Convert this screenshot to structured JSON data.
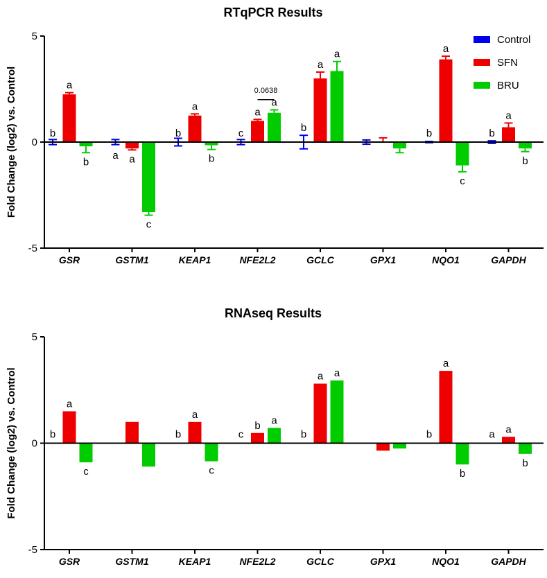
{
  "colors": {
    "Control": "#0000ee",
    "SFN": "#ee0000",
    "BRU": "#00cc00"
  },
  "legend": {
    "position": "top-right",
    "entries": [
      "Control",
      "SFN",
      "BRU"
    ]
  },
  "chart_data": [
    {
      "type": "bar",
      "title": "RTqPCR Results",
      "ylabel": "Fold Change (log2) vs. Control",
      "ylim": [
        -5,
        5
      ],
      "yticks": [
        "-5",
        "0",
        "5"
      ],
      "categories": [
        "GSR",
        "GSTM1",
        "KEAP1",
        "NFE2L2",
        "GCLC",
        "GPX1",
        "NQO1",
        "GAPDH"
      ],
      "series": [
        {
          "name": "Control",
          "values": [
            0,
            0,
            0,
            0,
            0,
            0,
            0,
            0
          ],
          "errors": [
            0.12,
            0.12,
            0.18,
            0.12,
            0.32,
            0.1,
            0.03,
            0.06
          ],
          "letters": [
            "b",
            "a",
            "b",
            "c",
            "b",
            "",
            "b",
            "b"
          ]
        },
        {
          "name": "SFN",
          "values": [
            2.25,
            -0.3,
            1.25,
            1.0,
            3.0,
            0,
            3.9,
            0.7
          ],
          "errors": [
            0.08,
            0.07,
            0.08,
            0.07,
            0.3,
            0.2,
            0.15,
            0.2
          ],
          "letters": [
            "a",
            "a",
            "a",
            "a",
            "a",
            "",
            "a",
            "a"
          ]
        },
        {
          "name": "BRU",
          "values": [
            -0.2,
            -3.3,
            -0.15,
            1.38,
            3.35,
            -0.3,
            -1.1,
            -0.3
          ],
          "errors": [
            0.3,
            0.15,
            0.2,
            0.14,
            0.45,
            0.2,
            0.3,
            0.15
          ],
          "letters": [
            "b",
            "c",
            "b",
            "a",
            "a",
            "",
            "c",
            "b"
          ]
        }
      ],
      "annotations": [
        {
          "text": "0.0638",
          "between": "NFE2L2 SFN-BRU"
        }
      ]
    },
    {
      "type": "bar",
      "title": "RNAseq Results",
      "ylabel": "Fold Change (log2) vs. Control",
      "ylim": [
        -5,
        5
      ],
      "yticks": [
        "-5",
        "0",
        "5"
      ],
      "categories": [
        "GSR",
        "GSTM1",
        "KEAP1",
        "NFE2L2",
        "GCLC",
        "GPX1",
        "NQO1",
        "GAPDH"
      ],
      "series": [
        {
          "name": "Control",
          "values": [
            0,
            0,
            0,
            0,
            0,
            0,
            0,
            0
          ],
          "letters": [
            "b",
            "",
            "b",
            "c",
            "b",
            "",
            "b",
            "a"
          ]
        },
        {
          "name": "SFN",
          "values": [
            1.5,
            1.0,
            1.0,
            0.48,
            2.8,
            -0.35,
            3.4,
            0.3
          ],
          "letters": [
            "a",
            "",
            "a",
            "b",
            "a",
            "",
            "a",
            "a"
          ]
        },
        {
          "name": "BRU",
          "values": [
            -0.9,
            -1.1,
            -0.85,
            0.72,
            2.95,
            -0.25,
            -1.0,
            -0.5
          ],
          "letters": [
            "c",
            "",
            "c",
            "a",
            "a",
            "",
            "b",
            "b"
          ]
        }
      ]
    }
  ]
}
